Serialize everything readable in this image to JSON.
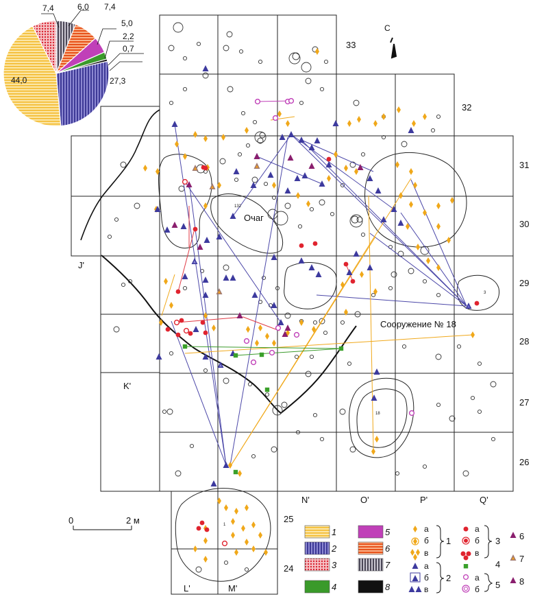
{
  "map": {
    "north_label": "С",
    "feature_label": "Очаг",
    "structure_label": "Сооружение № 18",
    "small_numbers": [
      "132",
      "18",
      "3",
      "1"
    ],
    "columns": [
      "L'",
      "M'",
      "N'",
      "O'",
      "P'",
      "Q'",
      "J'",
      "K'"
    ],
    "rows": [
      "33",
      "32",
      "31",
      "30",
      "29",
      "28",
      "27",
      "26",
      "25",
      "24"
    ],
    "scale": {
      "start": "0",
      "end": "2 м"
    }
  },
  "chart_data": {
    "type": "pie",
    "values": [
      44.0,
      27.3,
      7.4,
      6.0,
      7.4,
      5.0,
      2.2,
      0.7
    ],
    "value_labels": [
      "44,0",
      "27,3",
      "7,4",
      "6,0",
      "7,4",
      "5,0",
      "2,2",
      "0,7"
    ],
    "slice_categories": [
      "1",
      "2",
      "3",
      "7",
      "6",
      "5",
      "4",
      "8"
    ],
    "slice_colors": [
      "#f7c94b",
      "#5a55b4",
      "#e03a45",
      "#6e6a7a",
      "#f06a1e",
      "#c040b8",
      "#3a9a2a",
      "#111111"
    ]
  },
  "legend": {
    "swatches": [
      {
        "n": "1",
        "color": "#f7c94b",
        "pattern": "h"
      },
      {
        "n": "2",
        "color": "#4b47a8",
        "pattern": "v"
      },
      {
        "n": "3",
        "color": "#e03a45",
        "pattern": "dots"
      },
      {
        "n": "4",
        "color": "#3a9a2a",
        "pattern": "solid"
      },
      {
        "n": "5",
        "color": "#c040b8",
        "pattern": "solid"
      },
      {
        "n": "6",
        "color": "#f06a1e",
        "pattern": "h"
      },
      {
        "n": "7",
        "color": "#6e6a7a",
        "pattern": "v"
      },
      {
        "n": "8",
        "color": "#111111",
        "pattern": "solid"
      }
    ],
    "letters": [
      "а",
      "б",
      "в"
    ],
    "group_numbers": [
      "1",
      "2",
      "3",
      "4",
      "5",
      "6",
      "7",
      "8"
    ]
  }
}
